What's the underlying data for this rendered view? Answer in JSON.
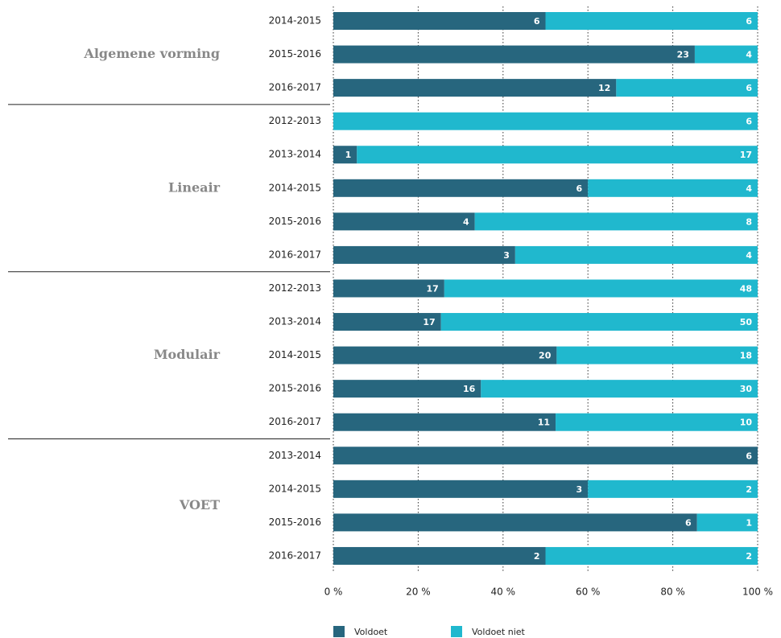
{
  "chart_data": {
    "type": "bar",
    "orientation": "horizontal",
    "stacked": "percent",
    "groups": [
      {
        "name": "Algemene vorming",
        "categories": [
          "2014-2015",
          "2015-2016",
          "2016-2017"
        ]
      },
      {
        "name": "Lineair",
        "categories": [
          "2012-2013",
          "2013-2014",
          "2014-2015",
          "2015-2016",
          "2016-2017"
        ]
      },
      {
        "name": "Modulair",
        "categories": [
          "2012-2013",
          "2013-2014",
          "2014-2015",
          "2015-2016",
          "2016-2017"
        ]
      },
      {
        "name": "VOET",
        "categories": [
          "2013-2014",
          "2014-2015",
          "2015-2016",
          "2016-2017"
        ]
      }
    ],
    "series": [
      {
        "name": "Voldoet",
        "color": "#27667e",
        "values": [
          6,
          23,
          12,
          0,
          1,
          6,
          4,
          3,
          17,
          17,
          20,
          16,
          11,
          6,
          3,
          6,
          2
        ]
      },
      {
        "name": "Voldoet niet",
        "color": "#20b8ce",
        "values": [
          6,
          4,
          6,
          6,
          17,
          4,
          8,
          4,
          48,
          50,
          18,
          30,
          10,
          0,
          2,
          1,
          2
        ]
      }
    ],
    "xlim": [
      0,
      100
    ],
    "xticks": [
      {
        "value": 0,
        "label": "0 %"
      },
      {
        "value": 20,
        "label": "20 %"
      },
      {
        "value": 40,
        "label": "40 %"
      },
      {
        "value": 60,
        "label": "60 %"
      },
      {
        "value": 80,
        "label": "80 %"
      },
      {
        "value": 100,
        "label": "100 %"
      }
    ],
    "grid": true,
    "legend": "bottom"
  }
}
